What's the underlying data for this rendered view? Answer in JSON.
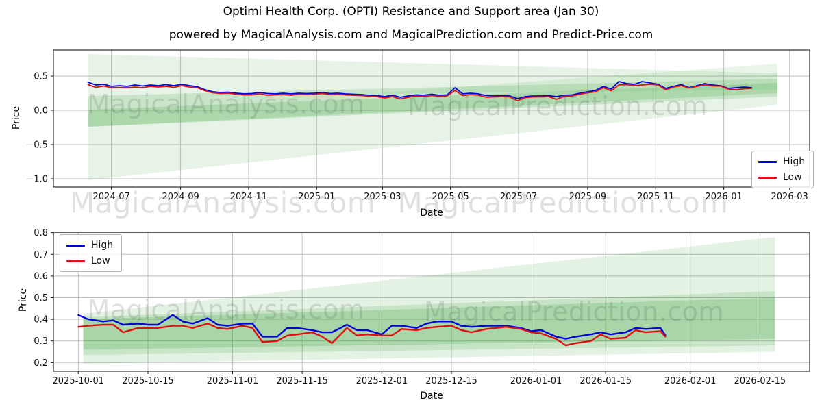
{
  "title": "Optimi Health Corp. (OPTI) Resistance and Support area (Jan 30)",
  "subtitle": "powered by MagicalAnalysis.com and MagicalPrediction.com and Predict-Price.com",
  "legend": {
    "high_label": "High",
    "low_label": "Low"
  },
  "colors": {
    "high_line": "#0000dd",
    "low_line": "#dd1111",
    "band_green": "#2f9e2f",
    "grid": "#bdbdbd",
    "frame": "#1a1a1a",
    "tick_text": "#111111"
  },
  "watermarks": {
    "top_left": "MagicalAnalysis.com",
    "top_right": "MagicalPrediction.com",
    "mid_left": "MagicalAnalysis.com",
    "mid_right": "MagicalPrediction.com",
    "bottom_left": "MagicalAnalysis.com",
    "bottom_right": "MagicalPrediction.com"
  },
  "chart_data": [
    {
      "type": "line",
      "title": "",
      "xlabel": "Date",
      "ylabel": "Price",
      "grid": true,
      "legend_position": "lower-right",
      "ylim": [
        -1.12,
        0.88
      ],
      "xlim": [
        "2024-05-10",
        "2026-03-19"
      ],
      "y_ticks": [
        {
          "label": "0.5",
          "value": 0.5
        },
        {
          "label": "0.0",
          "value": 0.0
        },
        {
          "label": "−0.5",
          "value": -0.5
        },
        {
          "label": "−1.0",
          "value": -1.0
        }
      ],
      "x_ticks": [
        {
          "label": "2024-07",
          "date": "2024-07-01"
        },
        {
          "label": "2024-09",
          "date": "2024-09-01"
        },
        {
          "label": "2024-11",
          "date": "2024-11-01"
        },
        {
          "label": "2025-01",
          "date": "2025-01-01"
        },
        {
          "label": "2025-03",
          "date": "2025-03-01"
        },
        {
          "label": "2025-05",
          "date": "2025-05-01"
        },
        {
          "label": "2025-07",
          "date": "2025-07-01"
        },
        {
          "label": "2025-09",
          "date": "2025-09-01"
        },
        {
          "label": "2025-11",
          "date": "2025-11-01"
        },
        {
          "label": "2026-01",
          "date": "2026-01-01"
        },
        {
          "label": "2026-03",
          "date": "2026-03-01"
        }
      ],
      "x": [
        "2024-06-10",
        "2024-06-17",
        "2024-06-24",
        "2024-07-01",
        "2024-07-08",
        "2024-07-15",
        "2024-07-22",
        "2024-07-29",
        "2024-08-05",
        "2024-08-12",
        "2024-08-19",
        "2024-08-26",
        "2024-09-02",
        "2024-09-09",
        "2024-09-16",
        "2024-09-23",
        "2024-09-30",
        "2024-10-07",
        "2024-10-14",
        "2024-10-21",
        "2024-10-28",
        "2024-11-04",
        "2024-11-11",
        "2024-11-18",
        "2024-11-25",
        "2024-12-02",
        "2024-12-09",
        "2024-12-16",
        "2024-12-23",
        "2024-12-30",
        "2025-01-06",
        "2025-01-13",
        "2025-01-20",
        "2025-01-27",
        "2025-02-03",
        "2025-02-10",
        "2025-02-17",
        "2025-02-24",
        "2025-03-03",
        "2025-03-10",
        "2025-03-17",
        "2025-03-24",
        "2025-03-31",
        "2025-04-07",
        "2025-04-14",
        "2025-04-21",
        "2025-04-28",
        "2025-05-05",
        "2025-05-12",
        "2025-05-19",
        "2025-05-26",
        "2025-06-02",
        "2025-06-09",
        "2025-06-16",
        "2025-06-23",
        "2025-06-30",
        "2025-07-07",
        "2025-07-14",
        "2025-07-21",
        "2025-07-28",
        "2025-08-04",
        "2025-08-11",
        "2025-08-18",
        "2025-08-25",
        "2025-09-01",
        "2025-09-08",
        "2025-09-15",
        "2025-09-22",
        "2025-09-29",
        "2025-10-06",
        "2025-10-13",
        "2025-10-20",
        "2025-10-27",
        "2025-11-03",
        "2025-11-10",
        "2025-11-17",
        "2025-11-24",
        "2025-12-01",
        "2025-12-08",
        "2025-12-15",
        "2025-12-22",
        "2025-12-29",
        "2026-01-05",
        "2026-01-12",
        "2026-01-19",
        "2026-01-26"
      ],
      "series": [
        {
          "name": "High",
          "color": "#0000dd",
          "values": [
            0.41,
            0.37,
            0.38,
            0.35,
            0.36,
            0.35,
            0.37,
            0.355,
            0.37,
            0.36,
            0.375,
            0.36,
            0.38,
            0.36,
            0.345,
            0.3,
            0.27,
            0.26,
            0.265,
            0.25,
            0.24,
            0.245,
            0.26,
            0.245,
            0.24,
            0.25,
            0.24,
            0.25,
            0.245,
            0.25,
            0.26,
            0.245,
            0.25,
            0.24,
            0.235,
            0.23,
            0.22,
            0.215,
            0.2,
            0.22,
            0.19,
            0.21,
            0.225,
            0.22,
            0.235,
            0.22,
            0.225,
            0.33,
            0.24,
            0.25,
            0.24,
            0.215,
            0.21,
            0.215,
            0.21,
            0.17,
            0.2,
            0.21,
            0.21,
            0.215,
            0.2,
            0.22,
            0.225,
            0.25,
            0.27,
            0.29,
            0.35,
            0.31,
            0.42,
            0.39,
            0.38,
            0.42,
            0.4,
            0.38,
            0.32,
            0.35,
            0.375,
            0.33,
            0.36,
            0.39,
            0.37,
            0.36,
            0.32,
            0.33,
            0.34,
            0.33
          ]
        },
        {
          "name": "Low",
          "color": "#dd1111",
          "values": [
            0.375,
            0.335,
            0.355,
            0.33,
            0.335,
            0.33,
            0.34,
            0.33,
            0.35,
            0.34,
            0.35,
            0.335,
            0.36,
            0.34,
            0.33,
            0.285,
            0.255,
            0.245,
            0.25,
            0.235,
            0.225,
            0.225,
            0.24,
            0.22,
            0.225,
            0.23,
            0.22,
            0.235,
            0.23,
            0.235,
            0.245,
            0.23,
            0.235,
            0.225,
            0.22,
            0.215,
            0.205,
            0.2,
            0.18,
            0.2,
            0.165,
            0.19,
            0.21,
            0.205,
            0.215,
            0.205,
            0.21,
            0.29,
            0.215,
            0.23,
            0.22,
            0.19,
            0.195,
            0.2,
            0.195,
            0.14,
            0.185,
            0.195,
            0.195,
            0.2,
            0.16,
            0.205,
            0.21,
            0.235,
            0.255,
            0.27,
            0.33,
            0.285,
            0.37,
            0.375,
            0.36,
            0.37,
            0.38,
            0.37,
            0.3,
            0.34,
            0.36,
            0.325,
            0.35,
            0.37,
            0.355,
            0.355,
            0.31,
            0.3,
            0.315,
            0.32
          ]
        }
      ],
      "support_resistance_bands": [
        {
          "start": "2024-06-10",
          "end": "2026-02-18",
          "top_start": 0.82,
          "bottom_start": -1.02,
          "top_end": 0.54,
          "bottom_end": 0.08,
          "opacity": 0.12
        },
        {
          "start": "2024-06-10",
          "end": "2026-02-18",
          "top_start": 0.21,
          "bottom_start": -0.24,
          "top_end": 0.46,
          "bottom_end": 0.2,
          "opacity": 0.16
        },
        {
          "start": "2024-06-10",
          "end": "2026-02-18",
          "top_start": 0.01,
          "bottom_start": -0.24,
          "top_end": 0.4,
          "bottom_end": 0.25,
          "opacity": 0.18
        },
        {
          "start": "2025-03-01",
          "end": "2026-02-18",
          "top_start": 0.26,
          "bottom_start": 0.24,
          "top_end": 0.68,
          "bottom_end": 0.3,
          "opacity": 0.1
        }
      ]
    },
    {
      "type": "line",
      "title": "",
      "xlabel": "Date",
      "ylabel": "Price",
      "grid": true,
      "legend_position": "upper-left",
      "ylim": [
        0.16,
        0.802
      ],
      "xlim": [
        "2025-09-26",
        "2026-02-25"
      ],
      "y_ticks": [
        {
          "label": "0.8",
          "value": 0.8
        },
        {
          "label": "0.7",
          "value": 0.7
        },
        {
          "label": "0.6",
          "value": 0.6
        },
        {
          "label": "0.5",
          "value": 0.5
        },
        {
          "label": "0.4",
          "value": 0.4
        },
        {
          "label": "0.3",
          "value": 0.3
        },
        {
          "label": "0.2",
          "value": 0.2
        }
      ],
      "x_ticks": [
        {
          "label": "2025-10-01",
          "date": "2025-10-01"
        },
        {
          "label": "2025-10-15",
          "date": "2025-10-15"
        },
        {
          "label": "2025-11-01",
          "date": "2025-11-01"
        },
        {
          "label": "2025-11-15",
          "date": "2025-11-15"
        },
        {
          "label": "2025-12-01",
          "date": "2025-12-01"
        },
        {
          "label": "2025-12-15",
          "date": "2025-12-15"
        },
        {
          "label": "2026-01-01",
          "date": "2026-01-01"
        },
        {
          "label": "2026-01-15",
          "date": "2026-01-15"
        },
        {
          "label": "2026-02-01",
          "date": "2026-02-01"
        },
        {
          "label": "2026-02-15",
          "date": "2026-02-15"
        }
      ],
      "x": [
        "2025-10-01",
        "2025-10-03",
        "2025-10-06",
        "2025-10-08",
        "2025-10-10",
        "2025-10-13",
        "2025-10-15",
        "2025-10-17",
        "2025-10-20",
        "2025-10-22",
        "2025-10-24",
        "2025-10-27",
        "2025-10-29",
        "2025-10-31",
        "2025-11-03",
        "2025-11-05",
        "2025-11-07",
        "2025-11-10",
        "2025-11-12",
        "2025-11-14",
        "2025-11-17",
        "2025-11-19",
        "2025-11-21",
        "2025-11-24",
        "2025-11-26",
        "2025-11-28",
        "2025-12-01",
        "2025-12-03",
        "2025-12-05",
        "2025-12-08",
        "2025-12-10",
        "2025-12-12",
        "2025-12-15",
        "2025-12-17",
        "2025-12-19",
        "2025-12-22",
        "2025-12-24",
        "2025-12-26",
        "2025-12-29",
        "2025-12-31",
        "2026-01-02",
        "2026-01-05",
        "2026-01-07",
        "2026-01-09",
        "2026-01-12",
        "2026-01-14",
        "2026-01-16",
        "2026-01-19",
        "2026-01-21",
        "2026-01-23",
        "2026-01-26",
        "2026-01-27"
      ],
      "series": [
        {
          "name": "High",
          "color": "#0000dd",
          "values": [
            0.42,
            0.4,
            0.39,
            0.395,
            0.375,
            0.38,
            0.375,
            0.375,
            0.42,
            0.39,
            0.38,
            0.405,
            0.375,
            0.37,
            0.38,
            0.38,
            0.32,
            0.32,
            0.36,
            0.36,
            0.35,
            0.34,
            0.34,
            0.375,
            0.35,
            0.35,
            0.33,
            0.37,
            0.37,
            0.36,
            0.38,
            0.39,
            0.39,
            0.37,
            0.365,
            0.37,
            0.37,
            0.37,
            0.36,
            0.345,
            0.35,
            0.32,
            0.31,
            0.32,
            0.33,
            0.34,
            0.33,
            0.34,
            0.36,
            0.355,
            0.36,
            0.325
          ]
        },
        {
          "name": "Low",
          "color": "#dd1111",
          "values": [
            0.365,
            0.37,
            0.375,
            0.375,
            0.34,
            0.36,
            0.36,
            0.36,
            0.37,
            0.37,
            0.36,
            0.38,
            0.36,
            0.355,
            0.37,
            0.36,
            0.295,
            0.3,
            0.325,
            0.33,
            0.34,
            0.32,
            0.29,
            0.36,
            0.325,
            0.33,
            0.325,
            0.325,
            0.355,
            0.35,
            0.36,
            0.365,
            0.37,
            0.35,
            0.34,
            0.355,
            0.36,
            0.365,
            0.355,
            0.34,
            0.335,
            0.31,
            0.28,
            0.29,
            0.3,
            0.33,
            0.31,
            0.315,
            0.35,
            0.34,
            0.345,
            0.32
          ]
        }
      ],
      "support_resistance_bands": [
        {
          "start": "2025-10-02",
          "end": "2026-02-18",
          "top_start": 0.425,
          "bottom_start": 0.195,
          "top_end": 0.78,
          "bottom_end": 0.25,
          "opacity": 0.13
        },
        {
          "start": "2025-10-02",
          "end": "2026-02-18",
          "top_start": 0.41,
          "bottom_start": 0.235,
          "top_end": 0.53,
          "bottom_end": 0.28,
          "opacity": 0.16
        },
        {
          "start": "2025-10-02",
          "end": "2026-02-18",
          "top_start": 0.4,
          "bottom_start": 0.26,
          "top_end": 0.5,
          "bottom_end": 0.31,
          "opacity": 0.2
        }
      ]
    }
  ]
}
